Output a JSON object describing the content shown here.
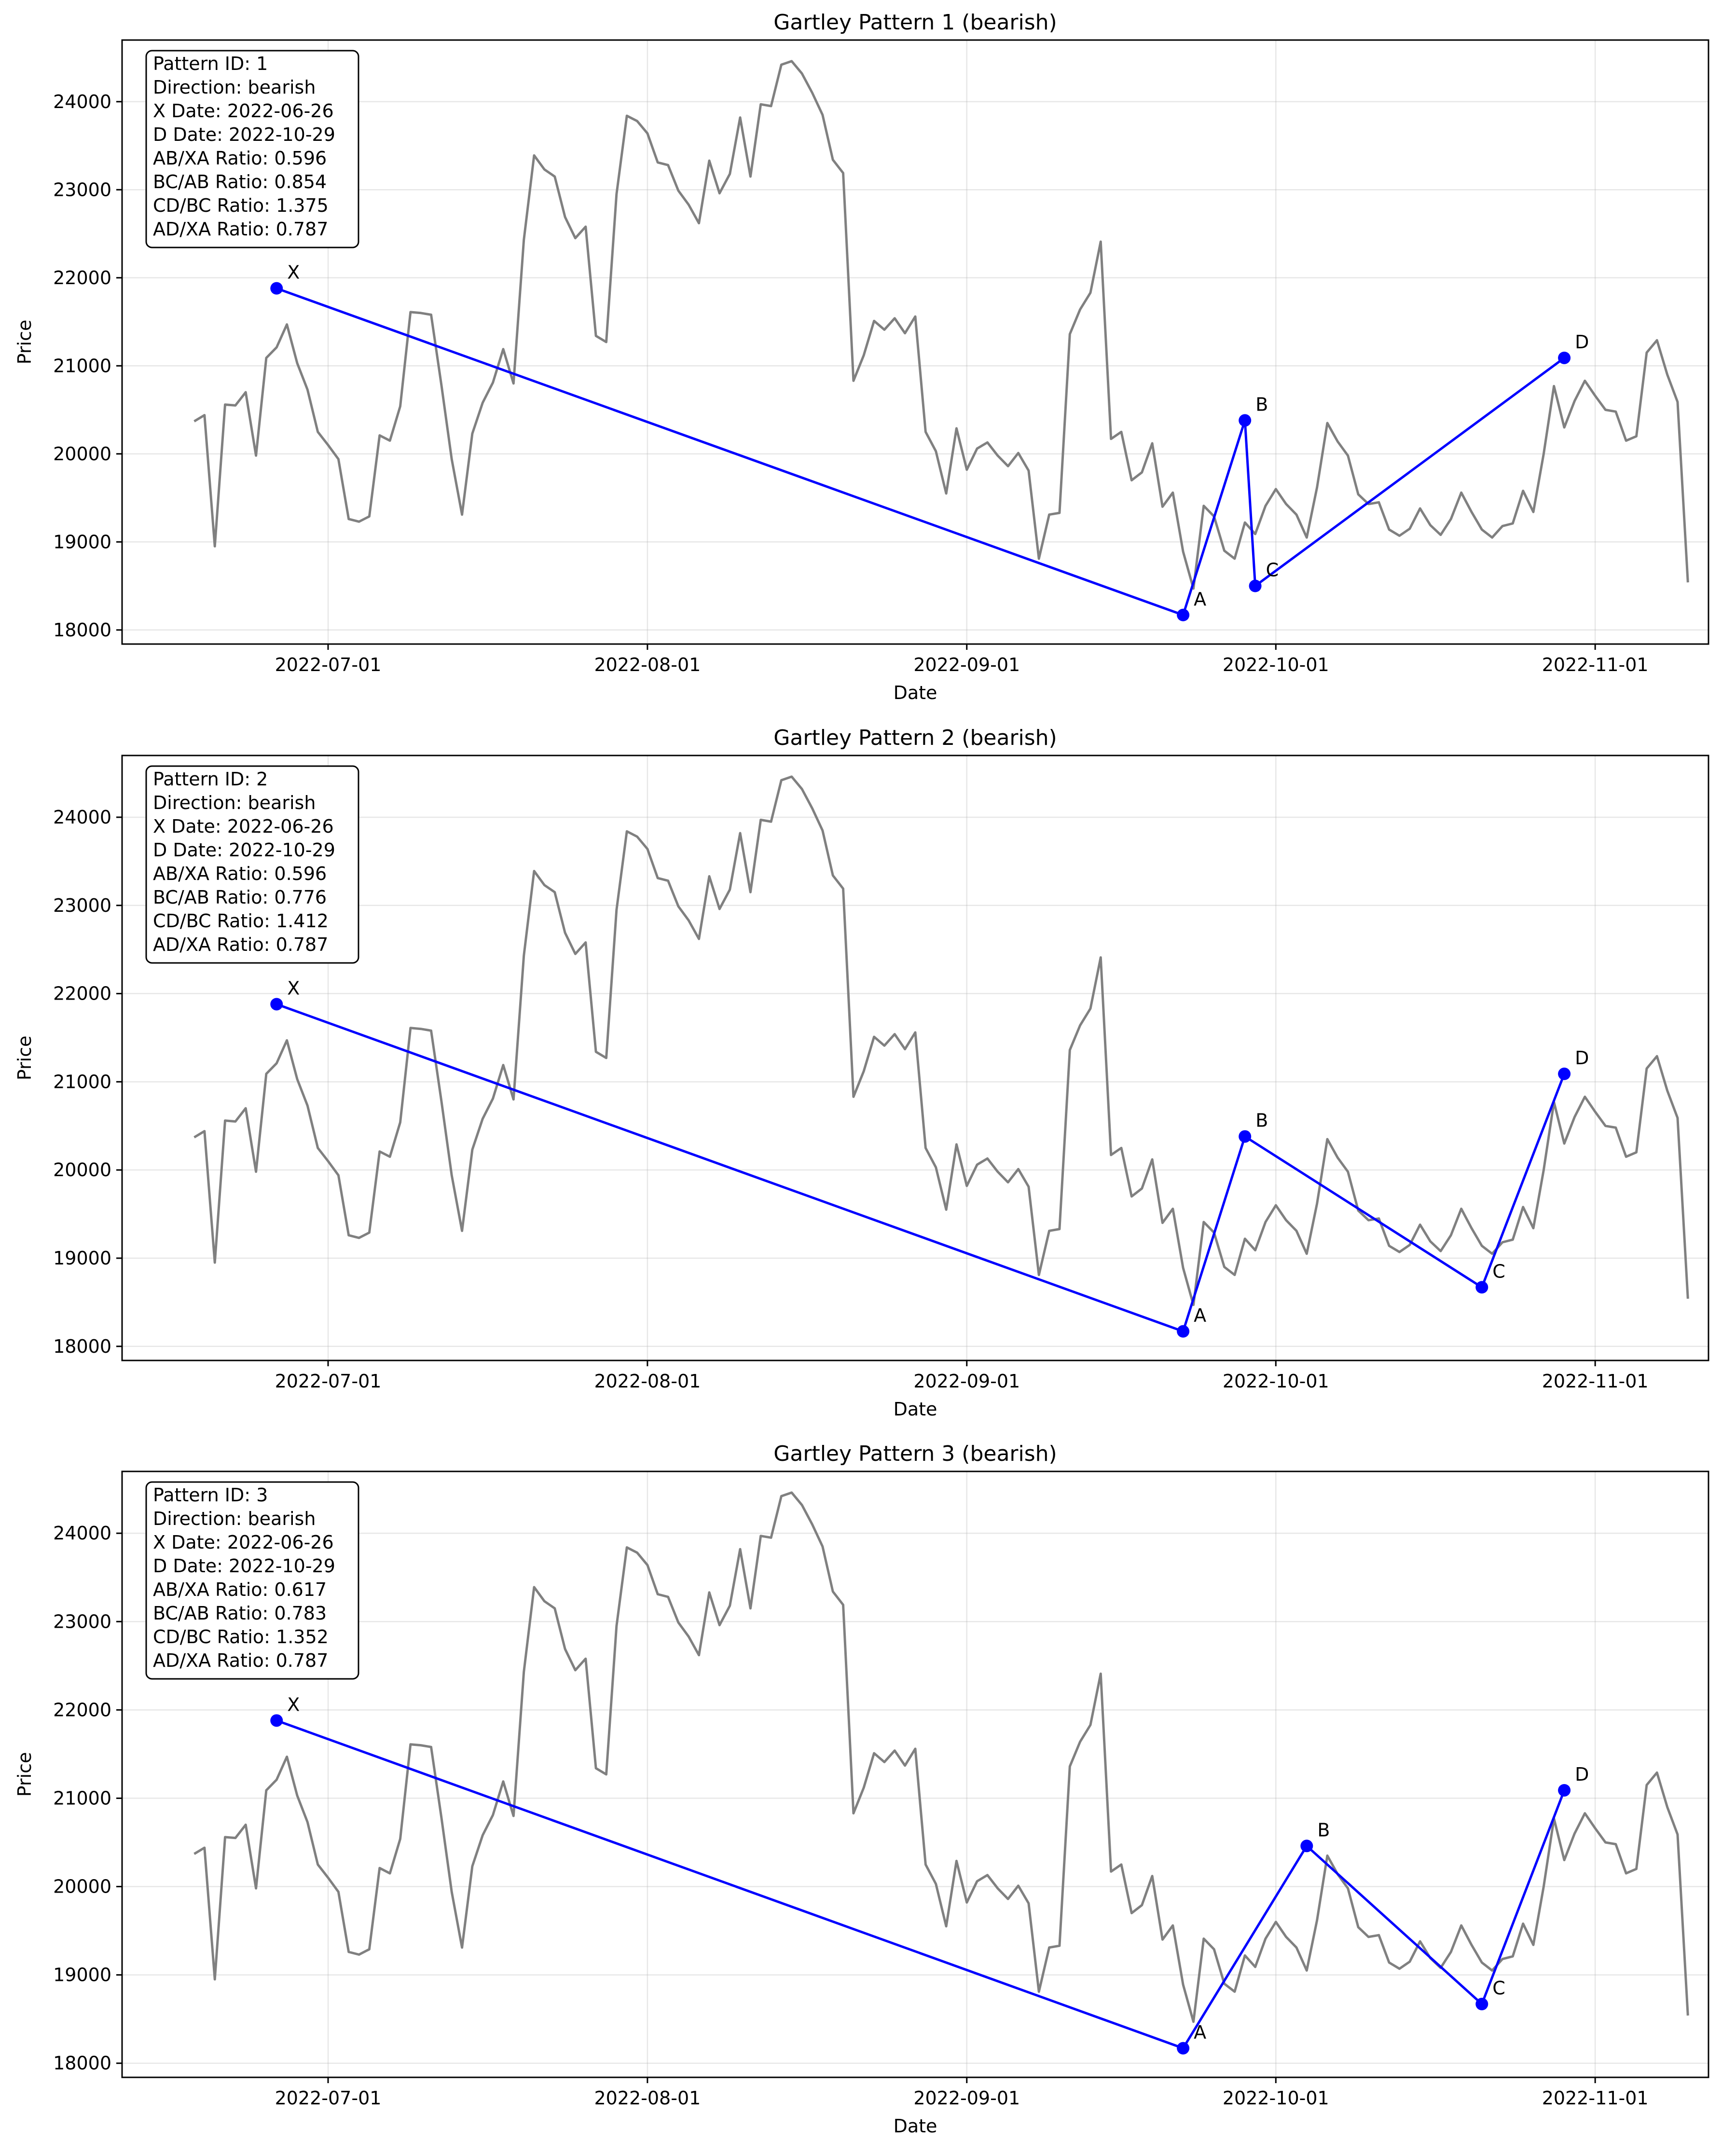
{
  "chart_data": [
    {
      "type": "line",
      "title": "Gartley Pattern 1 (bearish)",
      "xlabel": "Date",
      "ylabel": "Price",
      "grid": true,
      "xlim": [
        "2022-06-11",
        "2022-11-12"
      ],
      "ylim": [
        17840,
        24700
      ],
      "x_ticks": [
        "2022-07-01",
        "2022-08-01",
        "2022-09-01",
        "2022-10-01",
        "2022-11-01"
      ],
      "y_ticks": [
        18000,
        19000,
        20000,
        21000,
        22000,
        23000,
        24000
      ],
      "series": [
        {
          "kind": "price",
          "color": "#808080",
          "start_date": "2022-06-18",
          "values": [
            20370,
            20440,
            18950,
            20560,
            20550,
            20700,
            19980,
            21090,
            21210,
            21470,
            21030,
            20730,
            20250,
            20100,
            19940,
            19260,
            19230,
            19290,
            20210,
            20150,
            20540,
            21610,
            21600,
            21580,
            20780,
            19940,
            19310,
            20230,
            20580,
            20810,
            21190,
            20800,
            22430,
            23390,
            23230,
            23150,
            22690,
            22450,
            22580,
            21340,
            21270,
            22950,
            23840,
            23780,
            23640,
            23310,
            23280,
            22990,
            22830,
            22620,
            23330,
            22960,
            23180,
            23820,
            23150,
            23970,
            23950,
            24420,
            24460,
            24320,
            24100,
            23850,
            23340,
            23190,
            20830,
            21120,
            21510,
            21410,
            21540,
            21370,
            21560,
            20250,
            20030,
            19550,
            20290,
            19820,
            20060,
            20130,
            19980,
            19860,
            20010,
            19810,
            18810,
            19310,
            19330,
            21360,
            21640,
            21830,
            22410,
            20170,
            20250,
            19700,
            19790,
            20120,
            19400,
            19560,
            18890,
            18470,
            19410,
            19290,
            18900,
            18810,
            19220,
            19090,
            19410,
            19600,
            19430,
            19310,
            19050,
            19620,
            20350,
            20140,
            19980,
            19540,
            19430,
            19450,
            19140,
            19070,
            19150,
            19380,
            19190,
            19080,
            19260,
            19560,
            19340,
            19140,
            19050,
            19180,
            19210,
            19580,
            19340,
            20000,
            20770,
            20300,
            20600,
            20830,
            20660,
            20500,
            20480,
            20150,
            20200,
            21150,
            21290,
            20900,
            20590,
            18540
          ]
        }
      ],
      "pattern": [
        {
          "label": "X",
          "date": "2022-06-26",
          "value": 21880
        },
        {
          "label": "A",
          "date": "2022-09-22",
          "value": 18170
        },
        {
          "label": "B",
          "date": "2022-09-28",
          "value": 20380
        },
        {
          "label": "C",
          "date": "2022-09-29",
          "value": 18500
        },
        {
          "label": "D",
          "date": "2022-10-29",
          "value": 21090
        }
      ],
      "pattern_color": "#0000ff",
      "info_box": {
        "placement": "top-left",
        "lines": [
          "Pattern ID: 1",
          "Direction: bearish",
          "X Date: 2022-06-26",
          "D Date: 2022-10-29",
          "AB/XA Ratio: 0.596",
          "BC/AB Ratio: 0.854",
          "CD/BC Ratio: 1.375",
          "AD/XA Ratio: 0.787"
        ]
      }
    },
    {
      "type": "line",
      "title": "Gartley Pattern 2 (bearish)",
      "xlabel": "Date",
      "ylabel": "Price",
      "grid": true,
      "xlim": [
        "2022-06-11",
        "2022-11-12"
      ],
      "ylim": [
        17840,
        24700
      ],
      "x_ticks": [
        "2022-07-01",
        "2022-08-01",
        "2022-09-01",
        "2022-10-01",
        "2022-11-01"
      ],
      "y_ticks": [
        18000,
        19000,
        20000,
        21000,
        22000,
        23000,
        24000
      ],
      "series": [
        {
          "kind": "price",
          "color": "#808080",
          "start_date": "2022-06-18",
          "values": [
            20370,
            20440,
            18950,
            20560,
            20550,
            20700,
            19980,
            21090,
            21210,
            21470,
            21030,
            20730,
            20250,
            20100,
            19940,
            19260,
            19230,
            19290,
            20210,
            20150,
            20540,
            21610,
            21600,
            21580,
            20780,
            19940,
            19310,
            20230,
            20580,
            20810,
            21190,
            20800,
            22430,
            23390,
            23230,
            23150,
            22690,
            22450,
            22580,
            21340,
            21270,
            22950,
            23840,
            23780,
            23640,
            23310,
            23280,
            22990,
            22830,
            22620,
            23330,
            22960,
            23180,
            23820,
            23150,
            23970,
            23950,
            24420,
            24460,
            24320,
            24100,
            23850,
            23340,
            23190,
            20830,
            21120,
            21510,
            21410,
            21540,
            21370,
            21560,
            20250,
            20030,
            19550,
            20290,
            19820,
            20060,
            20130,
            19980,
            19860,
            20010,
            19810,
            18810,
            19310,
            19330,
            21360,
            21640,
            21830,
            22410,
            20170,
            20250,
            19700,
            19790,
            20120,
            19400,
            19560,
            18890,
            18470,
            19410,
            19290,
            18900,
            18810,
            19220,
            19090,
            19410,
            19600,
            19430,
            19310,
            19050,
            19620,
            20350,
            20140,
            19980,
            19540,
            19430,
            19450,
            19140,
            19070,
            19150,
            19380,
            19190,
            19080,
            19260,
            19560,
            19340,
            19140,
            19050,
            19180,
            19210,
            19580,
            19340,
            20000,
            20770,
            20300,
            20600,
            20830,
            20660,
            20500,
            20480,
            20150,
            20200,
            21150,
            21290,
            20900,
            20590,
            18540
          ]
        }
      ],
      "pattern": [
        {
          "label": "X",
          "date": "2022-06-26",
          "value": 21880
        },
        {
          "label": "A",
          "date": "2022-09-22",
          "value": 18170
        },
        {
          "label": "B",
          "date": "2022-09-28",
          "value": 20380
        },
        {
          "label": "C",
          "date": "2022-10-21",
          "value": 18670
        },
        {
          "label": "D",
          "date": "2022-10-29",
          "value": 21090
        }
      ],
      "pattern_color": "#0000ff",
      "info_box": {
        "placement": "top-left",
        "lines": [
          "Pattern ID: 2",
          "Direction: bearish",
          "X Date: 2022-06-26",
          "D Date: 2022-10-29",
          "AB/XA Ratio: 0.596",
          "BC/AB Ratio: 0.776",
          "CD/BC Ratio: 1.412",
          "AD/XA Ratio: 0.787"
        ]
      }
    },
    {
      "type": "line",
      "title": "Gartley Pattern 3 (bearish)",
      "xlabel": "Date",
      "ylabel": "Price",
      "grid": true,
      "xlim": [
        "2022-06-11",
        "2022-11-12"
      ],
      "ylim": [
        17840,
        24700
      ],
      "x_ticks": [
        "2022-07-01",
        "2022-08-01",
        "2022-09-01",
        "2022-10-01",
        "2022-11-01"
      ],
      "y_ticks": [
        18000,
        19000,
        20000,
        21000,
        22000,
        23000,
        24000
      ],
      "series": [
        {
          "kind": "price",
          "color": "#808080",
          "start_date": "2022-06-18",
          "values": [
            20370,
            20440,
            18950,
            20560,
            20550,
            20700,
            19980,
            21090,
            21210,
            21470,
            21030,
            20730,
            20250,
            20100,
            19940,
            19260,
            19230,
            19290,
            20210,
            20150,
            20540,
            21610,
            21600,
            21580,
            20780,
            19940,
            19310,
            20230,
            20580,
            20810,
            21190,
            20800,
            22430,
            23390,
            23230,
            23150,
            22690,
            22450,
            22580,
            21340,
            21270,
            22950,
            23840,
            23780,
            23640,
            23310,
            23280,
            22990,
            22830,
            22620,
            23330,
            22960,
            23180,
            23820,
            23150,
            23970,
            23950,
            24420,
            24460,
            24320,
            24100,
            23850,
            23340,
            23190,
            20830,
            21120,
            21510,
            21410,
            21540,
            21370,
            21560,
            20250,
            20030,
            19550,
            20290,
            19820,
            20060,
            20130,
            19980,
            19860,
            20010,
            19810,
            18810,
            19310,
            19330,
            21360,
            21640,
            21830,
            22410,
            20170,
            20250,
            19700,
            19790,
            20120,
            19400,
            19560,
            18890,
            18470,
            19410,
            19290,
            18900,
            18810,
            19220,
            19090,
            19410,
            19600,
            19430,
            19310,
            19050,
            19620,
            20350,
            20140,
            19980,
            19540,
            19430,
            19450,
            19140,
            19070,
            19150,
            19380,
            19190,
            19080,
            19260,
            19560,
            19340,
            19140,
            19050,
            19180,
            19210,
            19580,
            19340,
            20000,
            20770,
            20300,
            20600,
            20830,
            20660,
            20500,
            20480,
            20150,
            20200,
            21150,
            21290,
            20900,
            20590,
            18540
          ]
        }
      ],
      "pattern": [
        {
          "label": "X",
          "date": "2022-06-26",
          "value": 21880
        },
        {
          "label": "A",
          "date": "2022-09-22",
          "value": 18170
        },
        {
          "label": "B",
          "date": "2022-10-04",
          "value": 20460
        },
        {
          "label": "C",
          "date": "2022-10-21",
          "value": 18670
        },
        {
          "label": "D",
          "date": "2022-10-29",
          "value": 21090
        }
      ],
      "pattern_color": "#0000ff",
      "info_box": {
        "placement": "top-left",
        "lines": [
          "Pattern ID: 3",
          "Direction: bearish",
          "X Date: 2022-06-26",
          "D Date: 2022-10-29",
          "AB/XA Ratio: 0.617",
          "BC/AB Ratio: 0.783",
          "CD/BC Ratio: 1.352",
          "AD/XA Ratio: 0.787"
        ]
      }
    }
  ]
}
